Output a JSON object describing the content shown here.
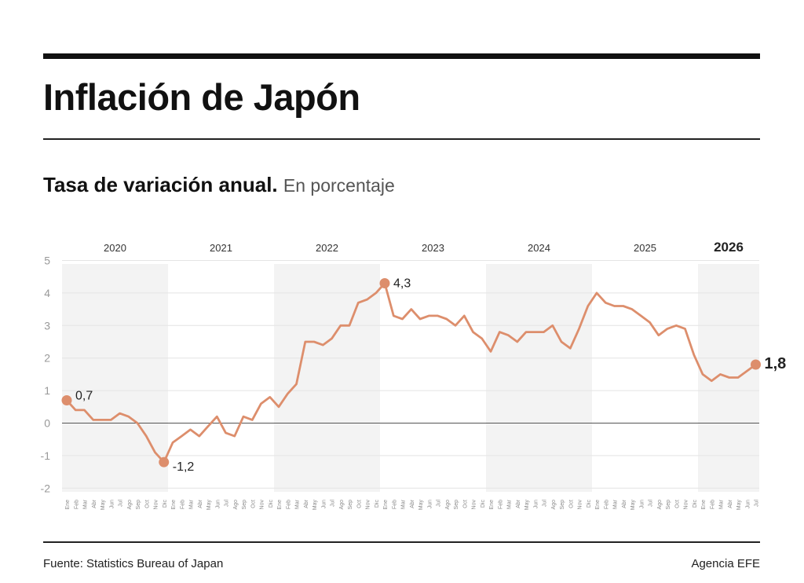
{
  "header": {
    "title": "Inflación de Japón",
    "subtitle_strong": "Tasa de variación anual.",
    "subtitle_light": "En porcentaje"
  },
  "footer": {
    "source": "Fuente: Statistics Bureau of Japan",
    "credit": "Agencia EFE"
  },
  "colors": {
    "line": "#dd8e6c",
    "band_shade": "#f3f3f3",
    "zero_line": "#555555",
    "grid": "#e4e4e4"
  },
  "chart_data": {
    "type": "line",
    "ylim": [
      -2,
      5
    ],
    "yticks": [
      "-2",
      "-1",
      "0",
      "1",
      "2",
      "3",
      "4",
      "5"
    ],
    "years": [
      "2020",
      "2021",
      "2022",
      "2023",
      "2024",
      "2025",
      "2026"
    ],
    "month_labels": [
      "Ene",
      "Feb",
      "Mar",
      "Abr",
      "May",
      "Jun",
      "Jul",
      "Ago",
      "Sep",
      "Oct",
      "Nov",
      "Dic"
    ],
    "series": [
      {
        "values": [
          0.7,
          0.4,
          0.4,
          0.1,
          0.1,
          0.1,
          0.3,
          0.2,
          0.0,
          -0.4,
          -0.9,
          -1.2,
          -0.6,
          -0.4,
          -0.2,
          -0.4,
          -0.1,
          0.2,
          -0.3,
          -0.4,
          0.2,
          0.1,
          0.6,
          0.8,
          0.5,
          0.9,
          1.2,
          2.5,
          2.5,
          2.4,
          2.6,
          3.0,
          3.0,
          3.7,
          3.8,
          4.0,
          4.3,
          3.3,
          3.2,
          3.5,
          3.2,
          3.3,
          3.3,
          3.2,
          3.0,
          3.3,
          2.8,
          2.6,
          2.2,
          2.8,
          2.7,
          2.5,
          2.8,
          2.8,
          2.8,
          3.0,
          2.5,
          2.3,
          2.9,
          3.6,
          4.0,
          3.7,
          3.6,
          3.6,
          3.5,
          3.3,
          3.1,
          2.7,
          2.9,
          3.0,
          2.9,
          2.1,
          1.5,
          1.3,
          1.5,
          1.4,
          1.4,
          1.6,
          1.8
        ]
      }
    ],
    "annotations": [
      {
        "index": 0,
        "label": "0,7",
        "bold": false
      },
      {
        "index": 11,
        "label": "-1,2",
        "bold": false
      },
      {
        "index": 36,
        "label": "4,3",
        "bold": false
      },
      {
        "index": 78,
        "label": "1,8",
        "bold": true
      }
    ],
    "current_year_bold": "2026"
  }
}
